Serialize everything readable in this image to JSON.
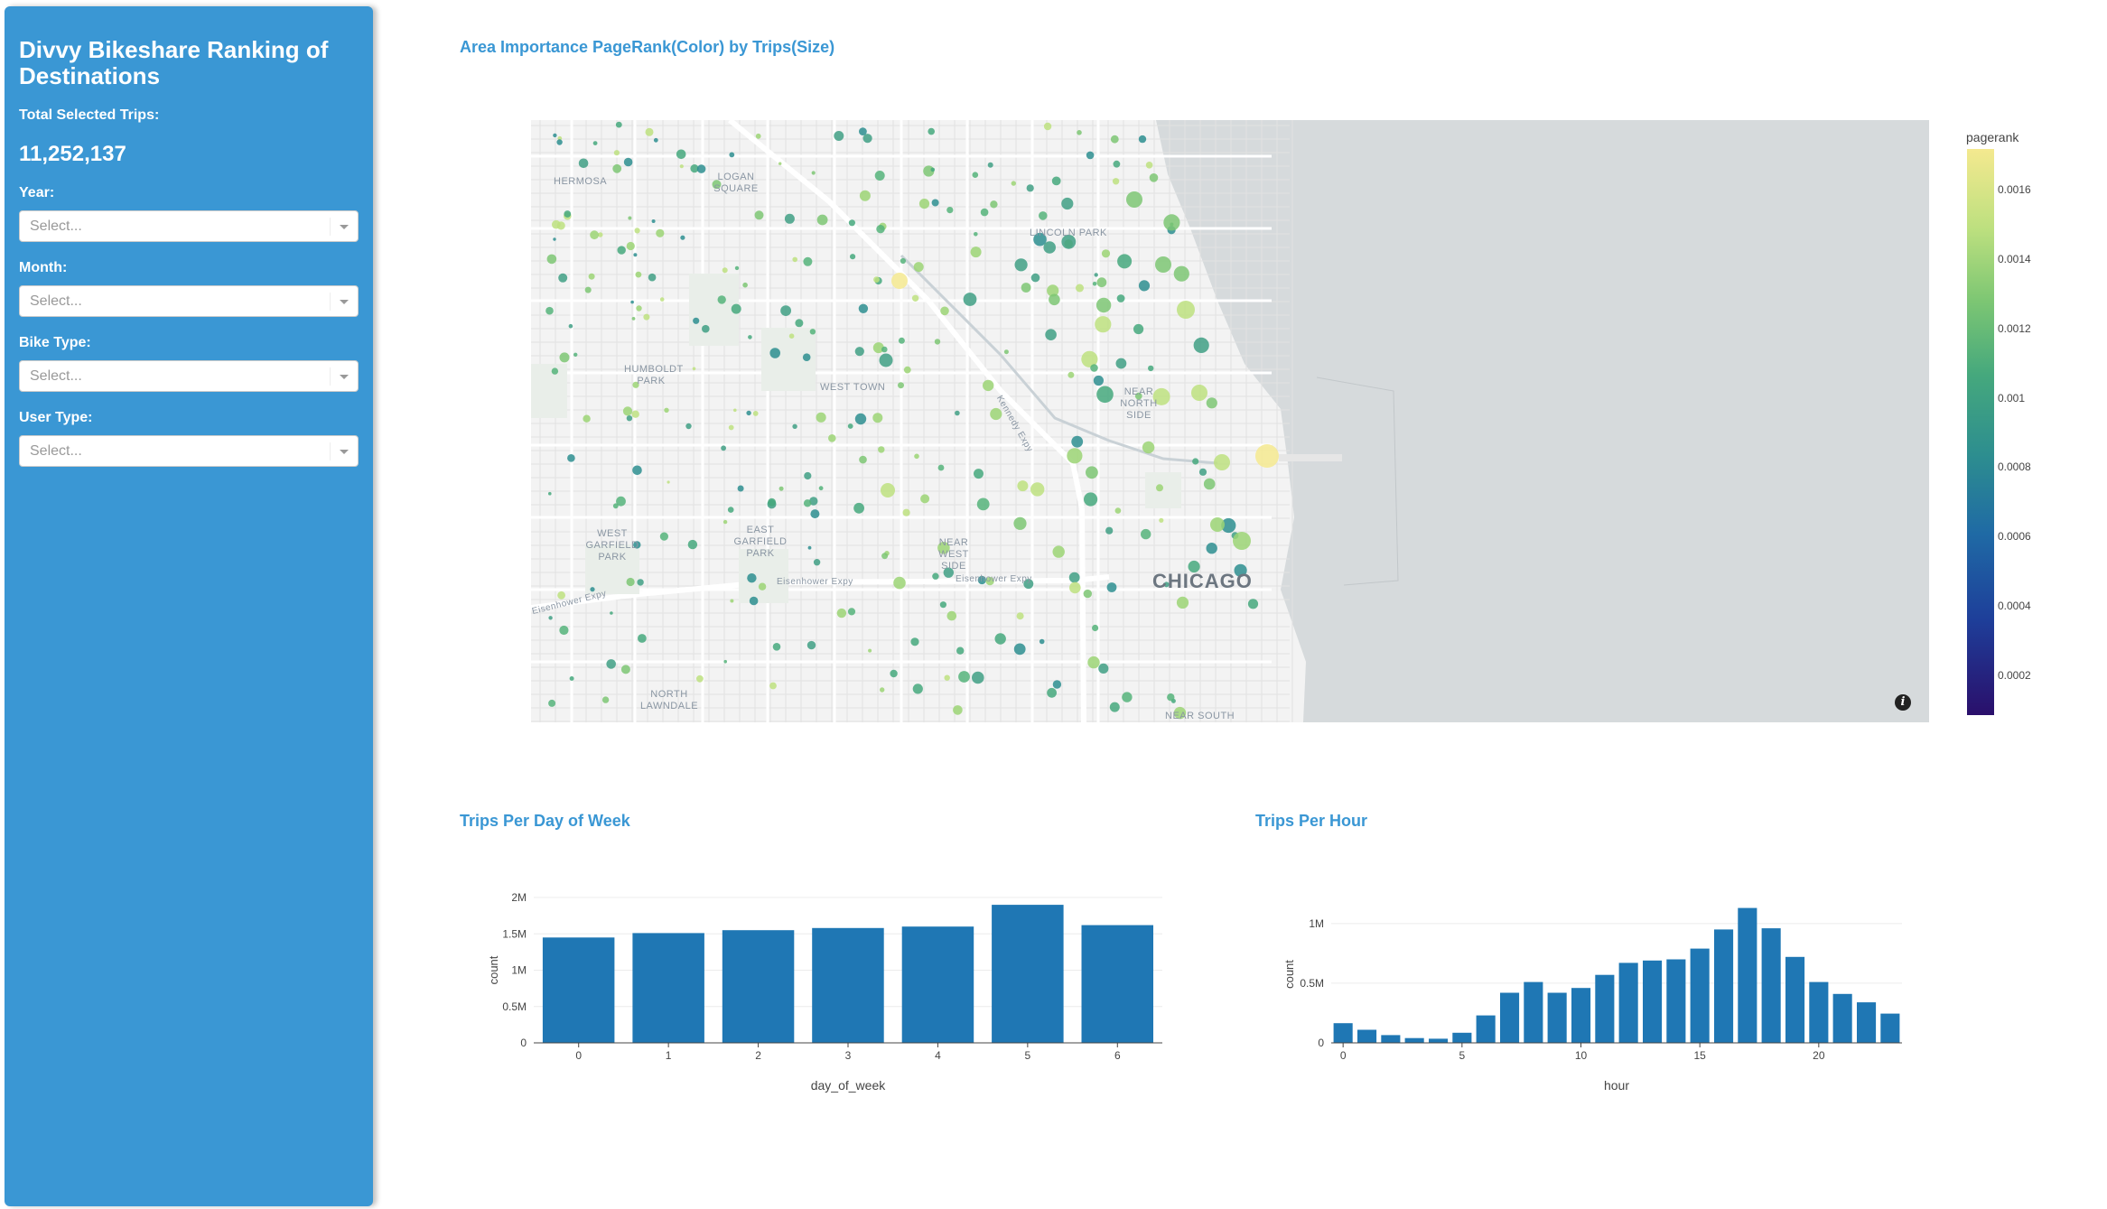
{
  "sidebar": {
    "title": "Divvy Bikeshare Ranking of Destinations",
    "total_label": "Total Selected Trips:",
    "total_value": "11,252,137",
    "filters": [
      {
        "label": "Year:",
        "placeholder": "Select..."
      },
      {
        "label": "Month:",
        "placeholder": "Select..."
      },
      {
        "label": "Bike Type:",
        "placeholder": "Select..."
      },
      {
        "label": "User Type:",
        "placeholder": "Select..."
      }
    ]
  },
  "map_section": {
    "title": "Area Importance PageRank(Color) by Trips(Size)",
    "city_label": "CHICAGO",
    "neighborhoods": [
      "HERMOSA",
      "LOGAN SQUARE",
      "LINCOLN PARK",
      "HUMBOLDT PARK",
      "WEST TOWN",
      "NEAR NORTH SIDE",
      "WEST GARFIELD PARK",
      "EAST GARFIELD PARK",
      "NEAR WEST SIDE",
      "NORTH LAWNDALE",
      "NEAR SOUTH"
    ],
    "roads": [
      "Eisenhower Expy",
      "Eisenhower Expy",
      "Eisenhower Expy",
      "Kennedy Expy"
    ],
    "info_icon": "i",
    "colorbar": {
      "title": "pagerank",
      "ticks": [
        "0.0016",
        "0.0014",
        "0.0012",
        "0.001",
        "0.0008",
        "0.0006",
        "0.0004",
        "0.0002"
      ],
      "colors": [
        "#2a0f6b",
        "#1e3f9a",
        "#1f6aa5",
        "#2d8e8f",
        "#45a87d",
        "#7cc673",
        "#bde07f",
        "#f4e98f"
      ]
    }
  },
  "chart_data": [
    {
      "type": "bar",
      "title": "Trips Per Day of Week",
      "xlabel": "day_of_week",
      "ylabel": "count",
      "categories": [
        0,
        1,
        2,
        3,
        4,
        5,
        6
      ],
      "values": [
        1450000,
        1510000,
        1550000,
        1580000,
        1600000,
        1900000,
        1620000
      ],
      "ylim": [
        0,
        2000000
      ],
      "yticks": [
        {
          "v": 0,
          "label": "0"
        },
        {
          "v": 500000,
          "label": "0.5M"
        },
        {
          "v": 1000000,
          "label": "1M"
        },
        {
          "v": 1500000,
          "label": "1.5M"
        },
        {
          "v": 2000000,
          "label": "2M"
        }
      ],
      "xticks": [
        "0",
        "1",
        "2",
        "3",
        "4",
        "5",
        "6"
      ],
      "color": "#1f77b4"
    },
    {
      "type": "bar",
      "title": "Trips Per Hour",
      "xlabel": "hour",
      "ylabel": "count",
      "categories": [
        0,
        1,
        2,
        3,
        4,
        5,
        6,
        7,
        8,
        9,
        10,
        11,
        12,
        13,
        14,
        15,
        16,
        17,
        18,
        19,
        20,
        21,
        22,
        23
      ],
      "values": [
        165000,
        110000,
        65000,
        40000,
        35000,
        85000,
        230000,
        420000,
        510000,
        420000,
        460000,
        570000,
        670000,
        690000,
        700000,
        790000,
        950000,
        1130000,
        960000,
        720000,
        510000,
        410000,
        340000,
        245000
      ],
      "ylim": [
        0,
        1150000
      ],
      "yticks": [
        {
          "v": 0,
          "label": "0"
        },
        {
          "v": 500000,
          "label": "0.5M"
        },
        {
          "v": 1000000,
          "label": "1M"
        }
      ],
      "xticks": [
        {
          "v": 0,
          "label": "0"
        },
        {
          "v": 5,
          "label": "5"
        },
        {
          "v": 10,
          "label": "10"
        },
        {
          "v": 15,
          "label": "15"
        },
        {
          "v": 20,
          "label": "20"
        }
      ],
      "color": "#1f77b4"
    }
  ]
}
